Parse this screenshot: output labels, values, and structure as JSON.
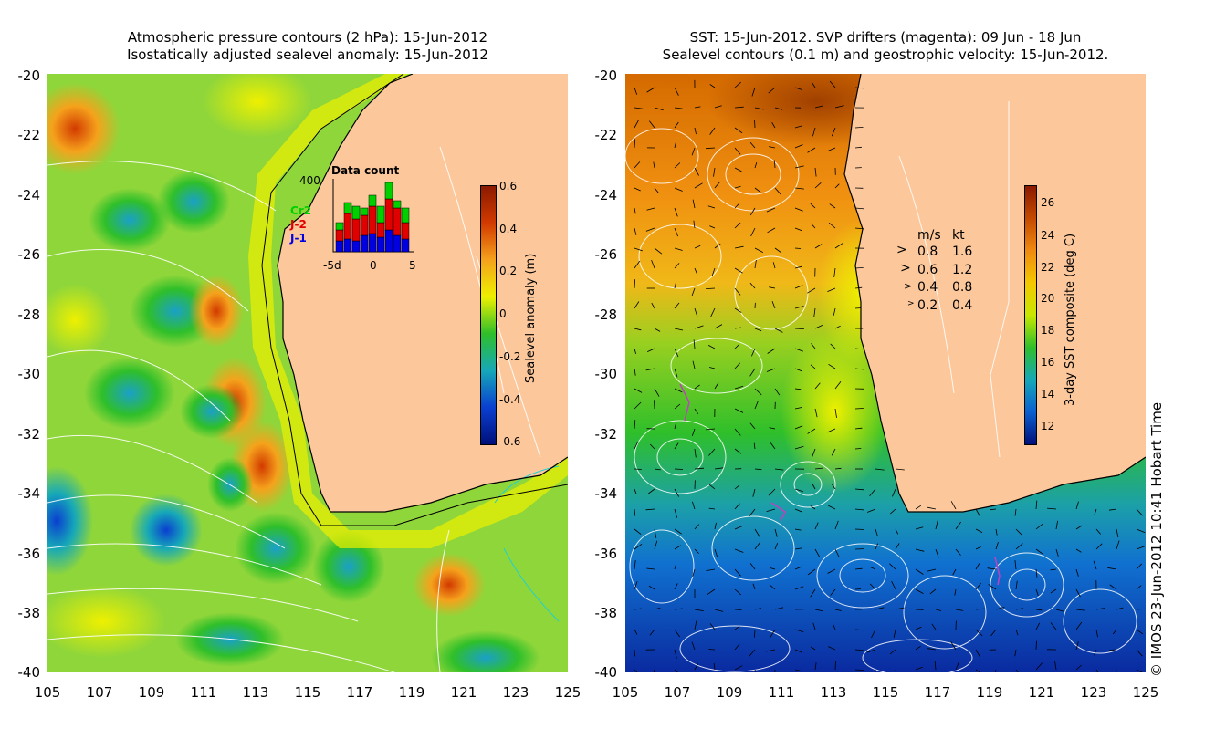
{
  "left_panel": {
    "title_line1": "Atmospheric pressure contours (2 hPa): 15-Jun-2012",
    "title_line2": "Isostatically adjusted sealevel anomaly: 15-Jun-2012",
    "y_ticks": [
      "-20",
      "-22",
      "-24",
      "-26",
      "-28",
      "-30",
      "-32",
      "-34",
      "-36",
      "-38",
      "-40"
    ],
    "x_ticks": [
      "105",
      "107",
      "109",
      "111",
      "113",
      "115",
      "117",
      "119",
      "121",
      "123",
      "125"
    ],
    "colorbar": {
      "label": "Sealevel anomaly (m)",
      "ticks": [
        "0.6",
        "0.4",
        "0.2",
        "0",
        "-0.2",
        "-0.4",
        "-0.6"
      ],
      "colors": [
        "#8b1a00",
        "#d23a00",
        "#f5a21c",
        "#eef000",
        "#2fbf2a",
        "#16a8b8",
        "#0a3fd0",
        "#00107a"
      ]
    },
    "inset": {
      "title": "Data count",
      "ymax": "400",
      "x_ticks": [
        "-5d",
        "0",
        "5"
      ],
      "legend": [
        {
          "name": "Cr2",
          "color": "#00d000"
        },
        {
          "name": "J-2",
          "color": "#e00000"
        },
        {
          "name": "J-1",
          "color": "#0000e0"
        }
      ],
      "bars": {
        "J-1": [
          60,
          70,
          60,
          90,
          100,
          80,
          120,
          90,
          70
        ],
        "J-2": [
          60,
          140,
          120,
          110,
          150,
          80,
          170,
          150,
          90
        ],
        "Cr2": [
          40,
          60,
          70,
          40,
          60,
          90,
          90,
          40,
          80
        ]
      }
    }
  },
  "right_panel": {
    "title_line1": "SST: 15-Jun-2012. SVP drifters (magenta): 09 Jun - 18 Jun",
    "title_line2": "Sealevel contours (0.1 m) and geostrophic velocity: 15-Jun-2012.",
    "y_ticks": [
      "-20",
      "-22",
      "-24",
      "-26",
      "-28",
      "-30",
      "-32",
      "-34",
      "-36",
      "-38",
      "-40"
    ],
    "x_ticks": [
      "105",
      "107",
      "109",
      "111",
      "113",
      "115",
      "117",
      "119",
      "121",
      "123",
      "125"
    ],
    "colorbar": {
      "label": "3-day SST composite (deg C)",
      "ticks": [
        "26",
        "24",
        "22",
        "20",
        "18",
        "16",
        "14",
        "12"
      ],
      "colors": [
        "#8b1a00",
        "#c54a00",
        "#f08a10",
        "#f5c800",
        "#c8e800",
        "#2fbf2a",
        "#16a8b8",
        "#0a5fd0",
        "#00107a"
      ]
    },
    "velocity_legend": {
      "header_ms": "m/s",
      "header_kt": "kt",
      "rows": [
        {
          "ms": "0.8",
          "kt": "1.6"
        },
        {
          "ms": "0.6",
          "kt": "1.2"
        },
        {
          "ms": "0.4",
          "kt": "0.8"
        },
        {
          "ms": "0.2",
          "kt": "0.4"
        }
      ]
    }
  },
  "copyright": "© IMOS 23-Jun-2012 10:41 Hobart Time",
  "colors": {
    "land": "#fcc89b",
    "text": "#000000"
  }
}
